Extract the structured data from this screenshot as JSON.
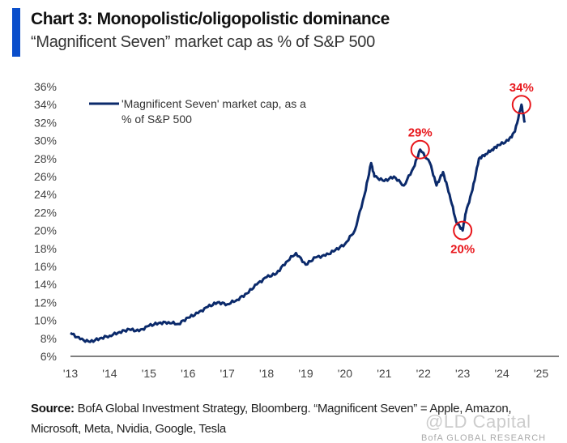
{
  "header": {
    "title": "Chart 3: Monopolistic/oligopolistic dominance",
    "subtitle": "“Magnificent Seven” market cap as % of S&P 500",
    "accent_color": "#0a4ecb"
  },
  "footer": {
    "source_label": "Source:",
    "source_text": " BofA Global Investment Strategy, Bloomberg. “Magnificent Seven” = Apple, Amazon, Microsoft, Meta, Nvidia, Google, Tesla",
    "watermark": "@LD Capital",
    "watermark2": "BofA GLOBAL RESEARCH"
  },
  "chart_data": {
    "type": "line",
    "title": "",
    "xlabel": "",
    "ylabel": "",
    "ylim": [
      6,
      36
    ],
    "yticks": [
      "6%",
      "8%",
      "10%",
      "12%",
      "14%",
      "16%",
      "18%",
      "20%",
      "22%",
      "24%",
      "26%",
      "28%",
      "30%",
      "32%",
      "34%",
      "36%"
    ],
    "xlim": [
      2013,
      2025
    ],
    "xticks": [
      "'13",
      "'14",
      "'15",
      "'16",
      "'17",
      "'18",
      "'19",
      "'20",
      "'21",
      "'22",
      "'23",
      "'24",
      "'25"
    ],
    "grid": false,
    "legend_position": "top-left",
    "line_color": "#0b2a6b",
    "annotation_color": "#e8161b",
    "series": [
      {
        "name": "'Magnificent Seven' market cap, as a % of S&P 500",
        "x": [
          "2013-01",
          "2013-04",
          "2013-07",
          "2013-10",
          "2014-01",
          "2014-04",
          "2014-07",
          "2014-10",
          "2015-01",
          "2015-04",
          "2015-07",
          "2015-10",
          "2016-01",
          "2016-04",
          "2016-07",
          "2016-10",
          "2017-01",
          "2017-04",
          "2017-07",
          "2017-10",
          "2018-01",
          "2018-04",
          "2018-07",
          "2018-10",
          "2019-01",
          "2019-04",
          "2019-07",
          "2019-10",
          "2020-01",
          "2020-04",
          "2020-07",
          "2020-09",
          "2020-10",
          "2021-01",
          "2021-04",
          "2021-07",
          "2021-10",
          "2021-12",
          "2022-03",
          "2022-05",
          "2022-07",
          "2022-09",
          "2022-11",
          "2023-01",
          "2023-02",
          "2023-04",
          "2023-06",
          "2023-08",
          "2023-10",
          "2023-12",
          "2024-03",
          "2024-05",
          "2024-07",
          "2024-08"
        ],
        "y": [
          8.6,
          7.9,
          7.6,
          8.0,
          8.3,
          8.7,
          9.0,
          8.8,
          9.4,
          9.7,
          9.8,
          9.6,
          10.3,
          10.8,
          11.5,
          12.0,
          11.8,
          12.3,
          13.0,
          14.0,
          14.8,
          15.2,
          16.5,
          17.5,
          16.2,
          17.0,
          17.2,
          17.8,
          18.5,
          20.0,
          24.0,
          27.5,
          26.0,
          25.5,
          26.0,
          25.0,
          27.0,
          29.0,
          27.5,
          25.0,
          26.5,
          24.0,
          21.0,
          20.0,
          22.0,
          24.5,
          28.0,
          28.5,
          29.0,
          29.5,
          30.0,
          31.0,
          34.0,
          32.0
        ]
      }
    ],
    "annotations": [
      {
        "label": "29%",
        "x": "2021-12",
        "y": 29.0,
        "position": "above"
      },
      {
        "label": "20%",
        "x": "2023-01",
        "y": 20.0,
        "position": "below"
      },
      {
        "label": "34%",
        "x": "2024-07",
        "y": 34.0,
        "position": "above"
      }
    ]
  }
}
